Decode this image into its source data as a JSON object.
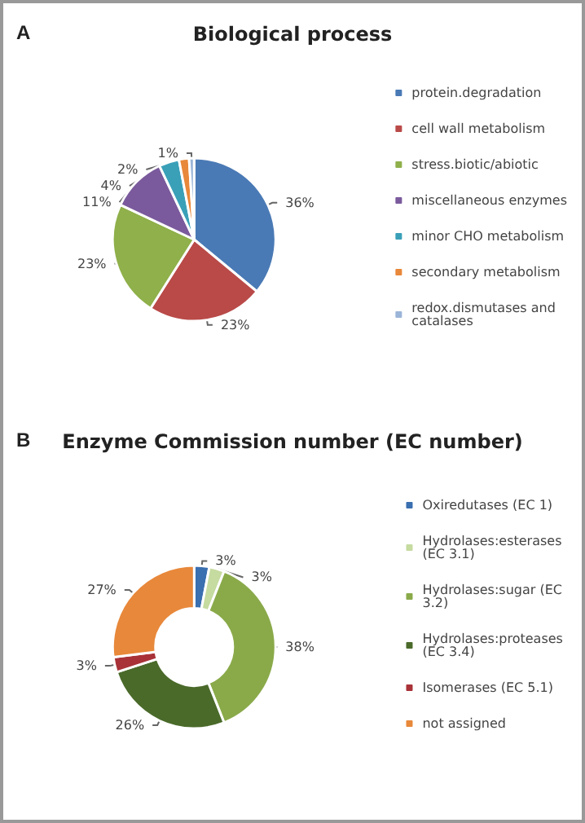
{
  "chart_data": [
    {
      "type": "pie",
      "title": "Biological process",
      "annotations": [
        "A"
      ],
      "legend": "right",
      "categories": [
        "protein.degradation",
        "cell wall metabolism",
        "stress.biotic/abiotic",
        "miscellaneous enzymes",
        "minor CHO metabolism",
        "secondary metabolism",
        "redox.dismutases and catalases"
      ],
      "values": [
        36,
        23,
        23,
        11,
        4,
        2,
        1
      ],
      "value_labels": [
        "36%",
        "23%",
        "23%",
        "11%",
        "4%",
        "2%",
        "1%"
      ],
      "colors": [
        "#4a7ab5",
        "#b94a48",
        "#8fb04a",
        "#7a5a9c",
        "#3aa0b8",
        "#e8883a",
        "#9bb5d8"
      ]
    },
    {
      "type": "donut",
      "title": "Enzyme Commission number (EC number)",
      "annotations": [
        "B"
      ],
      "legend": "right",
      "categories": [
        "Oxiredutases (EC 1)",
        "Hydrolases:esterases (EC 3.1)",
        "Hydrolases:sugar (EC 3.2)",
        "Hydrolases:proteases (EC 3.4)",
        "Isomerases (EC 5.1)",
        "not assigned"
      ],
      "values": [
        3,
        3,
        38,
        26,
        3,
        27
      ],
      "value_labels": [
        "3%",
        "3%",
        "38%",
        "26%",
        "3%",
        "27%"
      ],
      "colors": [
        "#3a6fb0",
        "#c5dba0",
        "#8aaa4a",
        "#4a6a2a",
        "#a83238",
        "#e8883a"
      ]
    }
  ]
}
